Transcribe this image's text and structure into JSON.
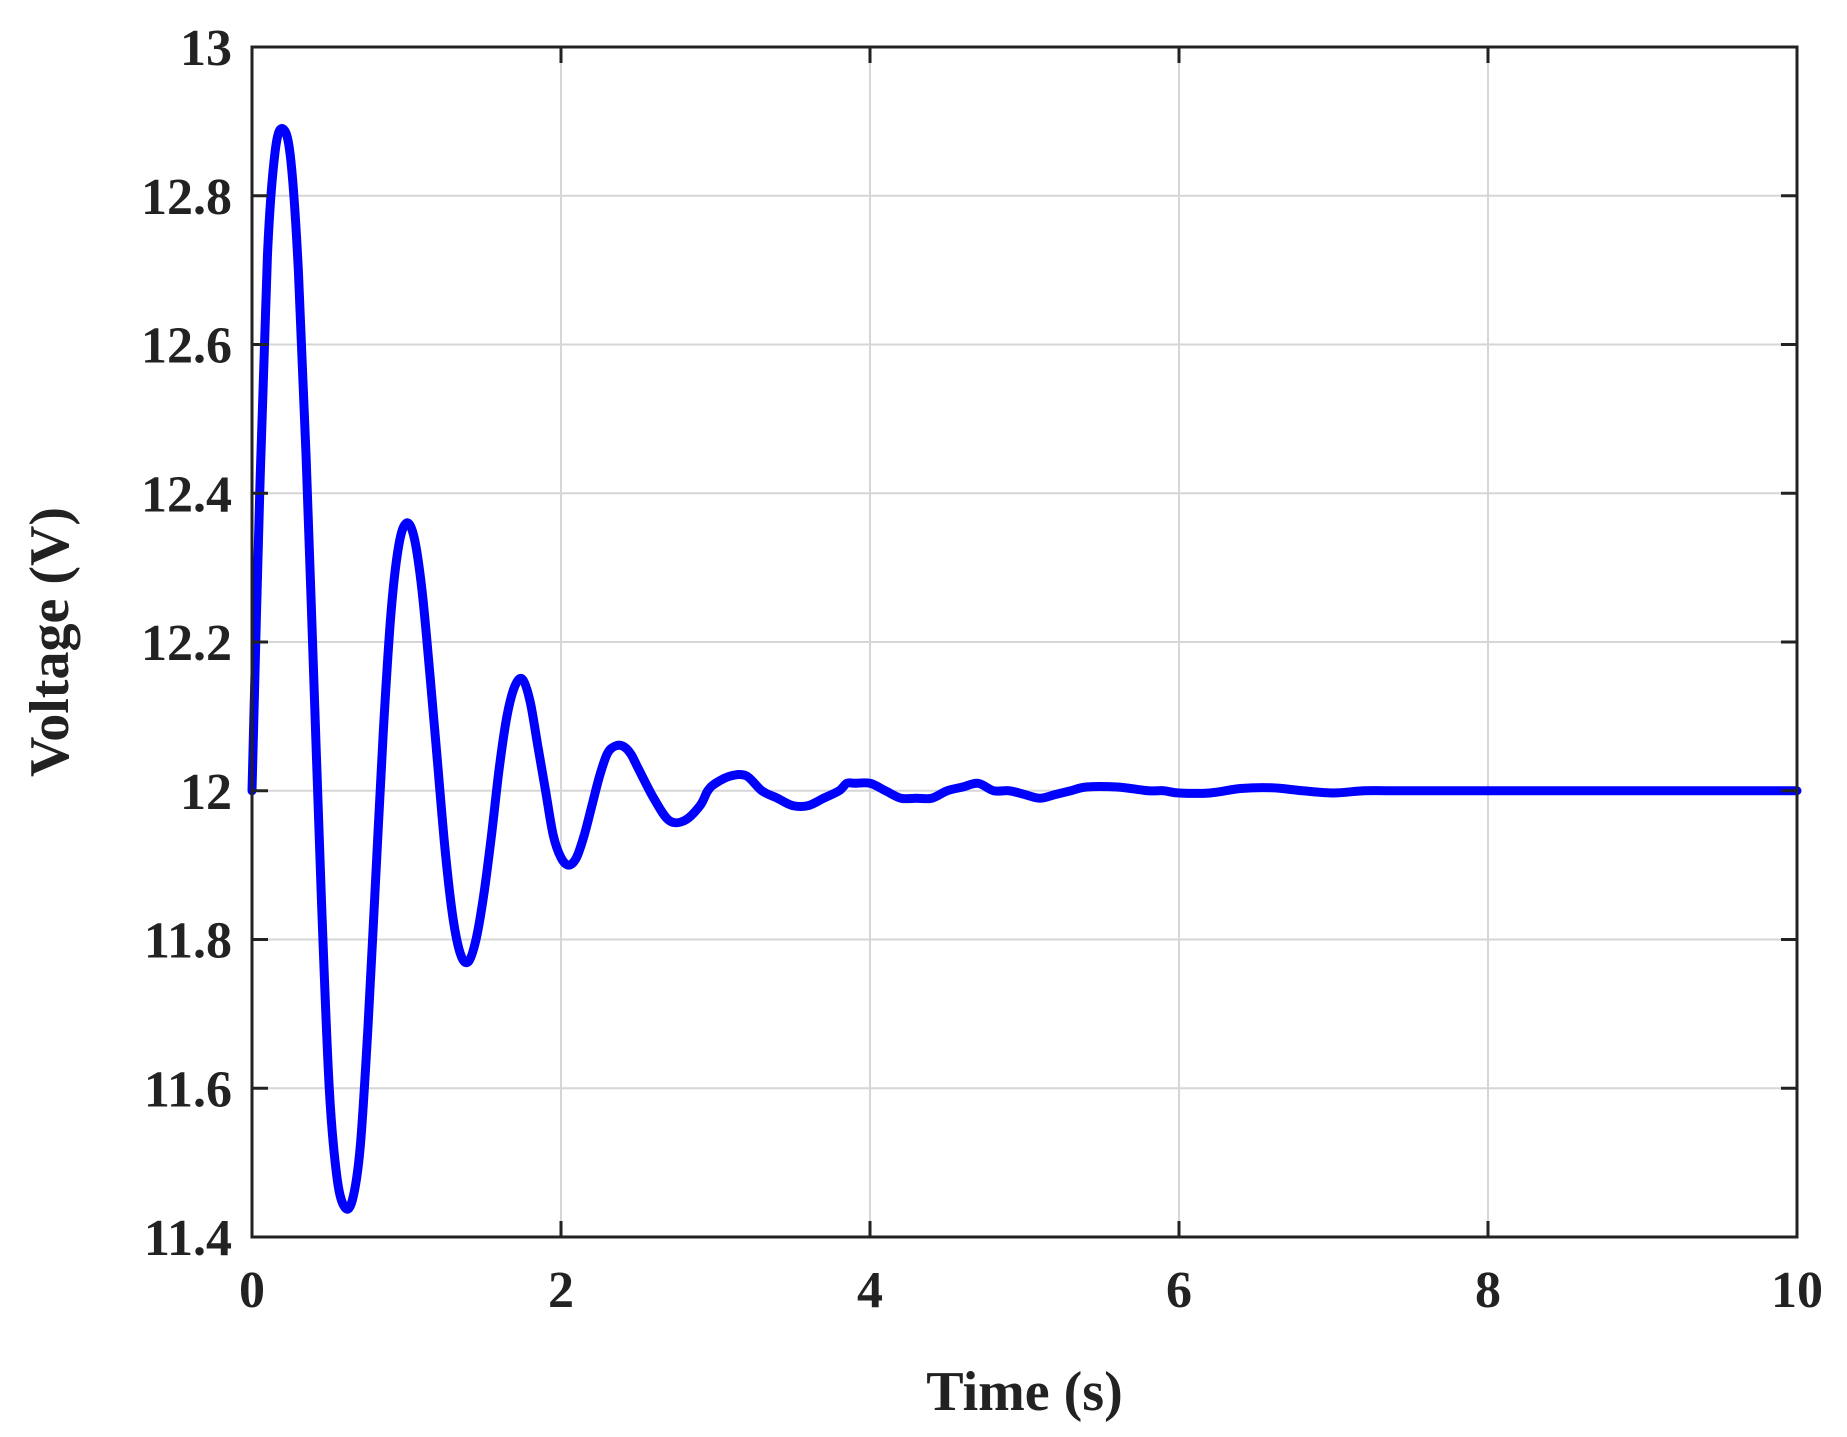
{
  "chart_data": {
    "type": "line",
    "xlabel": "Time (s)",
    "ylabel": "Voltage (V)",
    "xlim": [
      0,
      10
    ],
    "ylim": [
      11.4,
      13
    ],
    "xticks": [
      0,
      2,
      4,
      6,
      8,
      10
    ],
    "xtick_labels": [
      "0",
      "2",
      "4",
      "6",
      "8",
      "10"
    ],
    "yticks": [
      11.4,
      11.6,
      11.8,
      12,
      12.2,
      12.4,
      12.6,
      12.8,
      13
    ],
    "ytick_labels": [
      "11.4",
      "11.6",
      "11.8",
      "12",
      "12.2",
      "12.4",
      "12.6",
      "12.8",
      "13"
    ],
    "grid": true,
    "series": [
      {
        "color": "#0000ff",
        "x": [
          0,
          0.05,
          0.1,
          0.15,
          0.2,
          0.25,
          0.3,
          0.35,
          0.4,
          0.45,
          0.5,
          0.55,
          0.6,
          0.65,
          0.7,
          0.75,
          0.8,
          0.85,
          0.9,
          0.95,
          1.0,
          1.05,
          1.1,
          1.15,
          1.2,
          1.25,
          1.3,
          1.35,
          1.4,
          1.45,
          1.5,
          1.55,
          1.6,
          1.65,
          1.7,
          1.75,
          1.8,
          1.85,
          1.9,
          1.95,
          2.0,
          2.05,
          2.1,
          2.15,
          2.2,
          2.25,
          2.3,
          2.35,
          2.4,
          2.45,
          2.5,
          2.6,
          2.7,
          2.8,
          2.9,
          2.95,
          3.0,
          3.1,
          3.2,
          3.3,
          3.4,
          3.5,
          3.6,
          3.7,
          3.8,
          3.85,
          3.9,
          4.0,
          4.1,
          4.2,
          4.3,
          4.4,
          4.5,
          4.6,
          4.7,
          4.8,
          4.9,
          5.0,
          5.1,
          5.2,
          5.3,
          5.4,
          5.6,
          5.8,
          5.9,
          6.0,
          6.2,
          6.4,
          6.6,
          6.8,
          7.0,
          7.2,
          7.4,
          8.0,
          9.0,
          10.0
        ],
        "y": [
          12.0,
          12.4,
          12.72,
          12.86,
          12.89,
          12.85,
          12.7,
          12.45,
          12.15,
          11.85,
          11.6,
          11.48,
          11.44,
          11.45,
          11.52,
          11.68,
          11.88,
          12.08,
          12.24,
          12.33,
          12.36,
          12.34,
          12.27,
          12.16,
          12.04,
          11.92,
          11.83,
          11.78,
          11.77,
          11.8,
          11.86,
          11.94,
          12.03,
          12.1,
          12.14,
          12.15,
          12.12,
          12.06,
          12.0,
          11.94,
          11.91,
          11.9,
          11.91,
          11.94,
          11.98,
          12.02,
          12.05,
          12.06,
          12.06,
          12.05,
          12.03,
          11.99,
          11.96,
          11.96,
          11.98,
          12.0,
          12.01,
          12.02,
          12.02,
          12.0,
          11.99,
          11.98,
          11.98,
          11.99,
          12.0,
          12.01,
          12.01,
          12.01,
          12.0,
          11.99,
          11.99,
          11.99,
          12.0,
          12.005,
          12.01,
          12.0,
          12.0,
          11.995,
          11.99,
          11.995,
          12.0,
          12.005,
          12.005,
          12.0,
          12.0,
          11.997,
          11.997,
          12.003,
          12.004,
          12.0,
          11.997,
          12.0,
          12.0,
          12.0,
          12.0,
          12.0
        ]
      }
    ]
  }
}
